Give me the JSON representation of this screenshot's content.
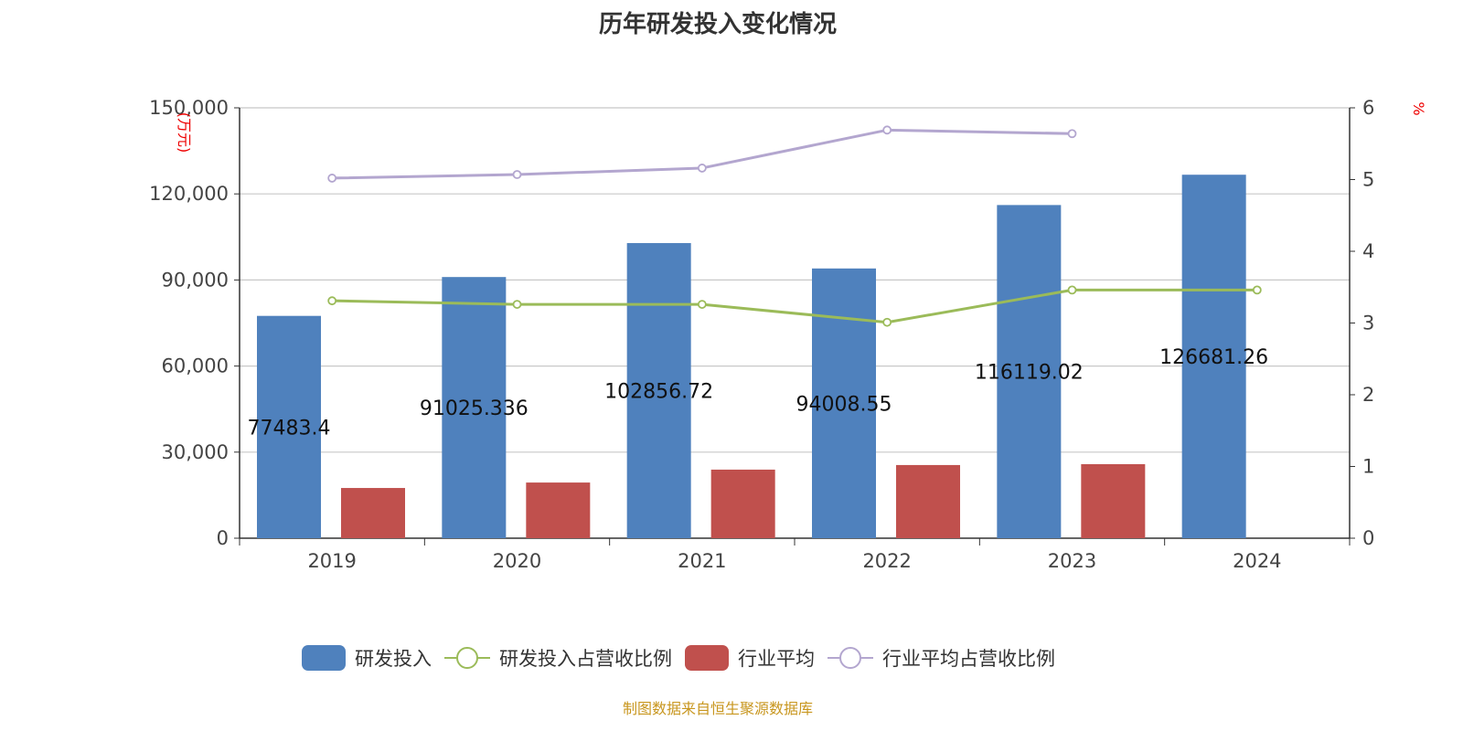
{
  "chart_data": {
    "type": "bar",
    "title": "历年研发投入变化情况",
    "categories": [
      "2019",
      "2020",
      "2021",
      "2022",
      "2023",
      "2024"
    ],
    "ylabel_left": "(万元)",
    "ylabel_right": "%",
    "ylim_left": [
      0,
      150000
    ],
    "yticks_left": [
      "0",
      "30,000",
      "60,000",
      "90,000",
      "120,000",
      "150,000"
    ],
    "ylim_right": [
      0,
      6
    ],
    "yticks_right": [
      "0",
      "1",
      "2",
      "3",
      "4",
      "5",
      "6"
    ],
    "grid": true,
    "legend_position": "bottom",
    "series": [
      {
        "name": "研发投入",
        "type": "bar",
        "axis": "left",
        "color": "#4f81bd",
        "values": [
          77483.4,
          91025.336,
          102856.72,
          94008.55,
          116119.02,
          126681.26
        ],
        "labels": [
          "77483.4",
          "91025.336",
          "102856.72",
          "94008.55",
          "116119.02",
          "126681.26"
        ]
      },
      {
        "name": "研发投入占营收比例",
        "type": "line",
        "axis": "right",
        "color": "#9bbb59",
        "values": [
          3.31,
          3.26,
          3.26,
          3.01,
          3.46,
          3.46
        ]
      },
      {
        "name": "行业平均",
        "type": "bar",
        "axis": "left",
        "color": "#c0504d",
        "values": [
          17500,
          19400,
          23900,
          25500,
          25800,
          null
        ]
      },
      {
        "name": "行业平均占营收比例",
        "type": "line",
        "axis": "right",
        "color": "#b3a6cf",
        "values": [
          5.02,
          5.07,
          5.16,
          5.69,
          5.64,
          null
        ]
      }
    ]
  },
  "source": "制图数据来自恒生聚源数据库"
}
